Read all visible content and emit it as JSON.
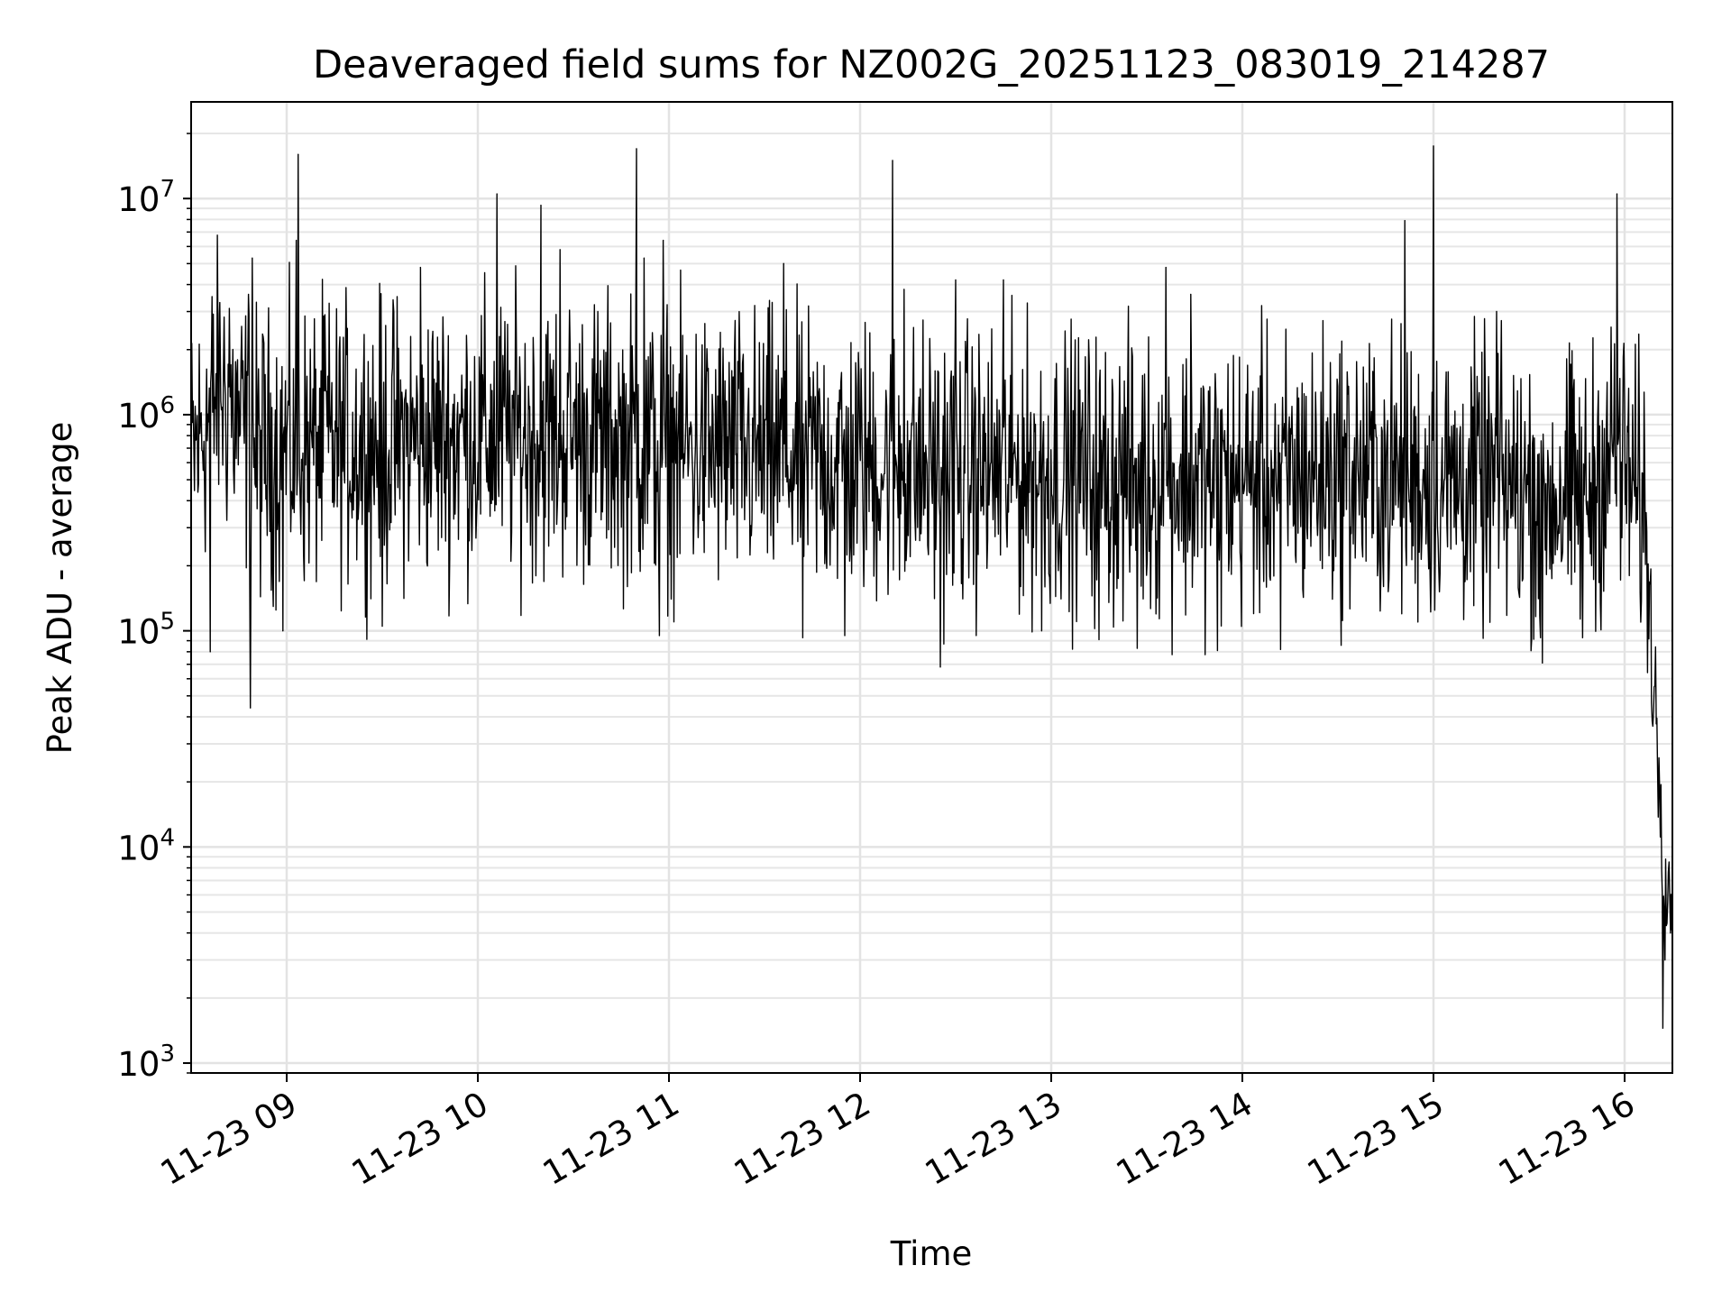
{
  "chart_data": {
    "type": "line",
    "title": "Deaveraged field sums for NZ002G_20251123_083019_214287",
    "xlabel": "Time",
    "ylabel": "Peak ADU - average",
    "yscale": "log",
    "ylim": [
      900,
      28000000
    ],
    "xlim_hours": [
      8.5,
      16.25
    ],
    "x_ticks": [
      {
        "hour": 9,
        "label": "11-23 09"
      },
      {
        "hour": 10,
        "label": "11-23 10"
      },
      {
        "hour": 11,
        "label": "11-23 11"
      },
      {
        "hour": 12,
        "label": "11-23 12"
      },
      {
        "hour": 13,
        "label": "11-23 13"
      },
      {
        "hour": 14,
        "label": "11-23 14"
      },
      {
        "hour": 15,
        "label": "11-23 15"
      },
      {
        "hour": 16,
        "label": "11-23 16"
      }
    ],
    "y_ticks": [
      {
        "value": 1000,
        "base": "10",
        "exp": "3"
      },
      {
        "value": 10000,
        "base": "10",
        "exp": "4"
      },
      {
        "value": 100000,
        "base": "10",
        "exp": "5"
      },
      {
        "value": 1000000,
        "base": "10",
        "exp": "6"
      },
      {
        "value": 10000000,
        "base": "10",
        "exp": "7"
      }
    ],
    "grid": true,
    "series": [
      {
        "name": "Deaveraged field sum",
        "color": "#000000",
        "baseline": {
          "hours": [
            8.5,
            8.65,
            8.75,
            8.85,
            9.0,
            9.5,
            10.0,
            10.5,
            11.0,
            11.5,
            12.0,
            12.5,
            13.0,
            13.5,
            14.0,
            14.5,
            15.0,
            15.5,
            15.8,
            15.9,
            15.95,
            16.05,
            16.1,
            16.13,
            16.15,
            16.18,
            16.2,
            16.22,
            16.25
          ],
          "values": [
            600000,
            1400000,
            900000,
            650000,
            700000,
            750000,
            800000,
            800000,
            700000,
            650000,
            600000,
            550000,
            550000,
            500000,
            500000,
            550000,
            500000,
            450000,
            400000,
            600000,
            700000,
            450000,
            380000,
            150000,
            60000,
            25000,
            12000,
            6000,
            9000
          ]
        },
        "spikes": [
          {
            "hour": 8.65,
            "value": 3300000
          },
          {
            "hour": 8.7,
            "value": 3100000
          },
          {
            "hour": 8.8,
            "value": 3600000
          },
          {
            "hour": 8.82,
            "value": 5300000
          },
          {
            "hour": 9.05,
            "value": 6400000
          },
          {
            "hour": 9.06,
            "value": 16000000
          },
          {
            "hour": 9.2,
            "value": 2900000
          },
          {
            "hour": 9.7,
            "value": 4800000
          },
          {
            "hour": 10.1,
            "value": 10500000
          },
          {
            "hour": 10.33,
            "value": 9300000
          },
          {
            "hour": 10.43,
            "value": 5800000
          },
          {
            "hour": 10.83,
            "value": 17000000
          },
          {
            "hour": 10.87,
            "value": 5300000
          },
          {
            "hour": 10.97,
            "value": 6400000
          },
          {
            "hour": 11.6,
            "value": 5000000
          },
          {
            "hour": 12.17,
            "value": 15000000
          },
          {
            "hour": 12.23,
            "value": 3800000
          },
          {
            "hour": 12.5,
            "value": 4200000
          },
          {
            "hour": 12.75,
            "value": 4200000
          },
          {
            "hour": 13.6,
            "value": 4800000
          },
          {
            "hour": 13.73,
            "value": 3600000
          },
          {
            "hour": 14.85,
            "value": 7900000
          },
          {
            "hour": 15.0,
            "value": 17500000
          },
          {
            "hour": 15.96,
            "value": 10500000
          },
          {
            "hour": 15.33,
            "value": 3000000
          }
        ],
        "dips": [
          {
            "hour": 8.6,
            "value": 80000
          },
          {
            "hour": 8.81,
            "value": 44000
          },
          {
            "hour": 8.98,
            "value": 100000
          },
          {
            "hour": 9.5,
            "value": 105000
          },
          {
            "hour": 10.95,
            "value": 95000
          },
          {
            "hour": 11.7,
            "value": 93000
          },
          {
            "hour": 11.92,
            "value": 95000
          },
          {
            "hour": 12.42,
            "value": 68000
          },
          {
            "hour": 12.95,
            "value": 100000
          },
          {
            "hour": 13.25,
            "value": 91000
          },
          {
            "hour": 13.45,
            "value": 83000
          },
          {
            "hour": 13.87,
            "value": 81000
          },
          {
            "hour": 14.2,
            "value": 82000
          },
          {
            "hour": 15.56,
            "value": 93000
          },
          {
            "hour": 15.57,
            "value": 71000
          },
          {
            "hour": 15.78,
            "value": 93000
          },
          {
            "hour": 16.2,
            "value": 1450
          },
          {
            "hour": 16.24,
            "value": 4000
          }
        ]
      }
    ]
  }
}
